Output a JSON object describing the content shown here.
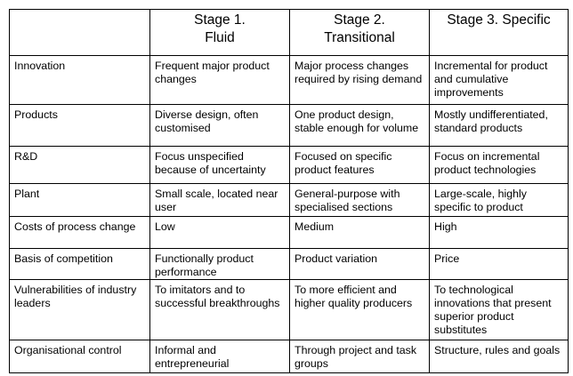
{
  "table": {
    "header": [
      [
        "Stage 1.",
        "Fluid"
      ],
      [
        "Stage 2.",
        "Transitional"
      ],
      [
        "Stage 3. Specific"
      ]
    ],
    "rows": [
      [
        "Innovation",
        "Frequent major product changes",
        "Major process changes required by rising demand",
        "Incremental for product and cumulative improvements"
      ],
      [
        "Products",
        "Diverse design, often customised",
        "One product  design, stable enough for volume",
        "Mostly undifferentiated, standard products"
      ],
      [
        "R&D",
        "Focus unspecified because of uncertainty",
        "Focused on specific product features",
        "Focus on incremental product technologies"
      ],
      [
        "Plant",
        "Small scale, located near user",
        "General-purpose with specialised sections",
        "Large-scale, highly specific to product"
      ],
      [
        "Costs of process change",
        "Low",
        "Medium",
        "High"
      ],
      [
        "Basis of competition",
        "Functionally product performance",
        "Product variation",
        "Price"
      ],
      [
        "Vulnerabilities of industry leaders",
        "To imitators and to successful breakthroughs",
        "To more efficient and higher quality producers",
        "To technological innovations that present superior product substitutes"
      ],
      [
        "Organisational control",
        "Informal and entrepreneurial",
        "Through project and task groups",
        "Structure, rules and goals"
      ]
    ]
  }
}
